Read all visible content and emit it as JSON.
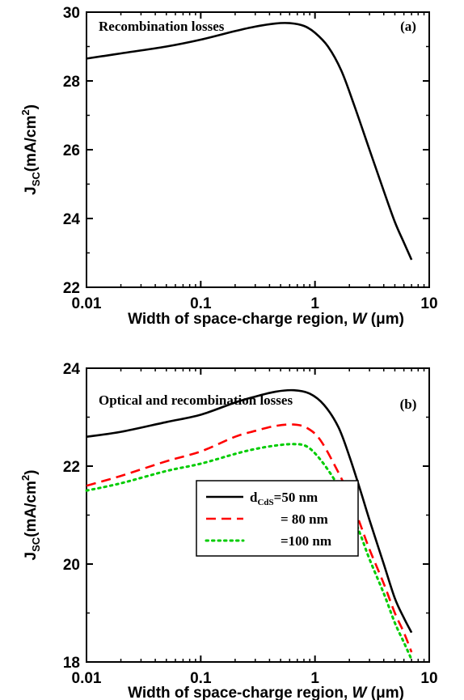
{
  "chart_data": [
    {
      "type": "line",
      "panel_label": "(a)",
      "title": "Recombination losses",
      "xlabel": {
        "main": "Width of space-charge region, ",
        "var": "W",
        "unit": " (μm)"
      },
      "ylabel": {
        "main": "J",
        "sub": "SC",
        "unit": "(mA/cm",
        "sup": "2",
        "close": ")"
      },
      "xscale": "log",
      "xlim": [
        0.01,
        10
      ],
      "ylim": [
        22,
        30
      ],
      "xticks": [
        0.01,
        0.1,
        1,
        10
      ],
      "xtick_labels": [
        "0.01",
        "0.1",
        "1",
        "10"
      ],
      "yticks": [
        22,
        24,
        26,
        28,
        30
      ],
      "ytick_labels": [
        "22",
        "24",
        "26",
        "28",
        "30"
      ],
      "grid": false,
      "series": [
        {
          "style": "solid",
          "color": "#000000",
          "x": [
            0.01,
            0.02,
            0.05,
            0.1,
            0.2,
            0.3,
            0.45,
            0.6,
            0.8,
            1.0,
            1.3,
            1.7,
            2.2,
            3.0,
            4.0,
            5.0,
            6.0,
            7.0
          ],
          "y": [
            28.65,
            28.8,
            29.0,
            29.2,
            29.45,
            29.58,
            29.67,
            29.68,
            29.6,
            29.4,
            29.0,
            28.3,
            27.3,
            26.0,
            24.8,
            23.9,
            23.3,
            22.8
          ]
        }
      ]
    },
    {
      "type": "line",
      "panel_label": "(b)",
      "title": "Optical and recombination losses",
      "xlabel": {
        "main": "Width of space-charge region, ",
        "var": "W",
        "unit": " (μm)"
      },
      "ylabel": {
        "main": "J",
        "sub": "SC",
        "unit": "(mA/cm",
        "sup": "2",
        "close": ")"
      },
      "xscale": "log",
      "xlim": [
        0.01,
        10
      ],
      "ylim": [
        18,
        24
      ],
      "xticks": [
        0.01,
        0.1,
        1,
        10
      ],
      "xtick_labels": [
        "0.01",
        "0.1",
        "1",
        "10"
      ],
      "yticks": [
        18,
        20,
        22,
        24
      ],
      "ytick_labels": [
        "18",
        "20",
        "22",
        "24"
      ],
      "grid": false,
      "legend_position": "center-right",
      "legend": {
        "entries": [
          {
            "prefix": "d",
            "sub": "CdS",
            "text": "=50 nm"
          },
          {
            "prefix": "",
            "sub": "",
            "text": "= 80 nm"
          },
          {
            "prefix": "",
            "sub": "",
            "text": "=100 nm"
          }
        ]
      },
      "series": [
        {
          "style": "solid",
          "color": "#000000",
          "x": [
            0.01,
            0.02,
            0.05,
            0.1,
            0.2,
            0.3,
            0.45,
            0.65,
            0.9,
            1.2,
            1.6,
            2.0,
            2.5,
            3.0,
            4.0,
            5.0,
            6.0,
            7.0
          ],
          "y": [
            22.6,
            22.7,
            22.9,
            23.05,
            23.3,
            23.42,
            23.52,
            23.55,
            23.48,
            23.25,
            22.8,
            22.2,
            21.5,
            20.9,
            20.0,
            19.3,
            18.9,
            18.6
          ]
        },
        {
          "style": "dashed",
          "color": "#ff0000",
          "x": [
            0.01,
            0.02,
            0.05,
            0.1,
            0.2,
            0.3,
            0.45,
            0.65,
            0.85,
            1.1,
            1.5,
            2.0,
            2.5,
            3.0,
            4.0,
            5.0,
            6.0,
            7.0
          ],
          "y": [
            21.6,
            21.8,
            22.1,
            22.3,
            22.6,
            22.72,
            22.82,
            22.85,
            22.78,
            22.55,
            22.0,
            21.4,
            20.8,
            20.3,
            19.6,
            19.0,
            18.6,
            18.2
          ]
        },
        {
          "style": "dotted",
          "color": "#00cc00",
          "x": [
            0.01,
            0.02,
            0.05,
            0.1,
            0.2,
            0.3,
            0.45,
            0.65,
            0.85,
            1.1,
            1.5,
            2.0,
            2.5,
            3.0,
            4.0,
            5.0,
            6.0,
            7.0
          ],
          "y": [
            21.5,
            21.65,
            21.9,
            22.05,
            22.25,
            22.35,
            22.42,
            22.45,
            22.4,
            22.15,
            21.7,
            21.15,
            20.6,
            20.1,
            19.4,
            18.8,
            18.4,
            18.05
          ]
        }
      ]
    }
  ]
}
